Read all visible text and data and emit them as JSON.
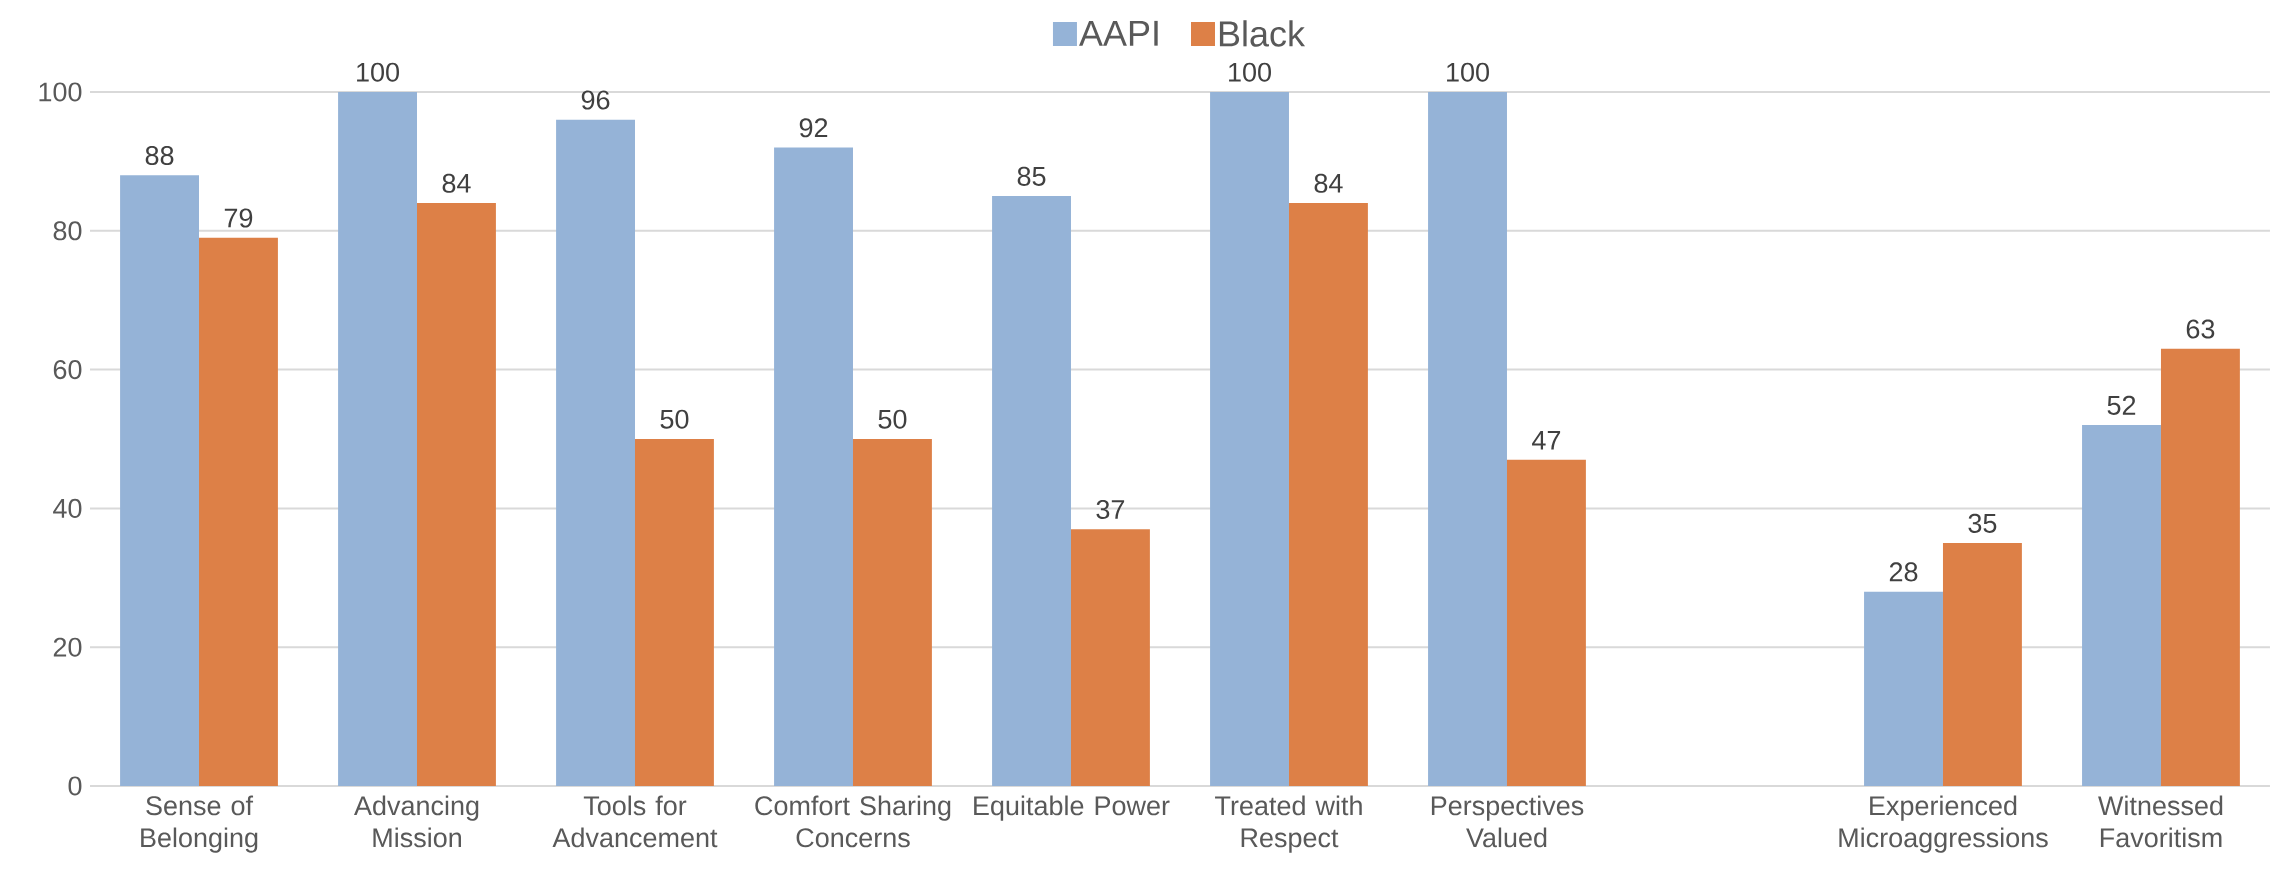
{
  "chart_data": {
    "type": "bar",
    "categories": [
      "Sense of Belonging",
      "Advancing Mission",
      "Tools for Advancement",
      "Comfort Sharing Concerns",
      "Equitable Power",
      "Treated with Respect",
      "Perspectives Valued",
      null,
      "Experienced Microaggressions",
      "Witnessed Favoritism"
    ],
    "series": [
      {
        "name": "AAPI",
        "color": "#95b3d7",
        "values": [
          88,
          100,
          96,
          92,
          85,
          100,
          100,
          null,
          28,
          52
        ]
      },
      {
        "name": "Black",
        "color": "#dd8047",
        "values": [
          79,
          84,
          50,
          50,
          37,
          84,
          47,
          null,
          35,
          63
        ]
      }
    ],
    "ylim": [
      0,
      100
    ],
    "yticks": [
      0,
      20,
      40,
      60,
      80,
      100
    ],
    "grid": "y",
    "legend": "top",
    "data_labels": true
  }
}
